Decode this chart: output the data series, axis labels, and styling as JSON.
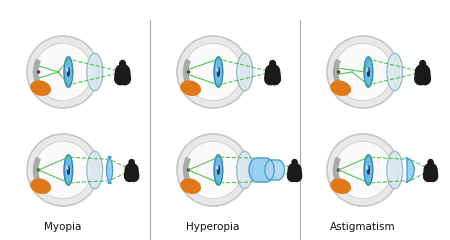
{
  "title_myopia": "Myopia",
  "title_hyperopia": "Hyperopia",
  "title_astigmatism": "Astigmatism",
  "bg_color": "#ffffff",
  "sclera_color": "#e8e8e8",
  "sclera_inner_color": "#f5f5f5",
  "sclera_edge_color": "#c8c8c8",
  "retina_ring_color": "#b8b8b8",
  "iris_blue": "#5ab5e8",
  "iris_dark": "#3a85b8",
  "cornea_color": "#d8e8f0",
  "cornea_edge": "#a0b8cc",
  "orange_color": "#e07818",
  "ray_color": "#44bb44",
  "ray_lw": 0.8,
  "divider_color": "#aaaaaa",
  "label_fontsize": 7.5,
  "person_color": "#1a1a1a",
  "lens_blue": "#88c8f0",
  "lens_edge": "#4499cc",
  "figure_width": 4.5,
  "figure_height": 2.4
}
